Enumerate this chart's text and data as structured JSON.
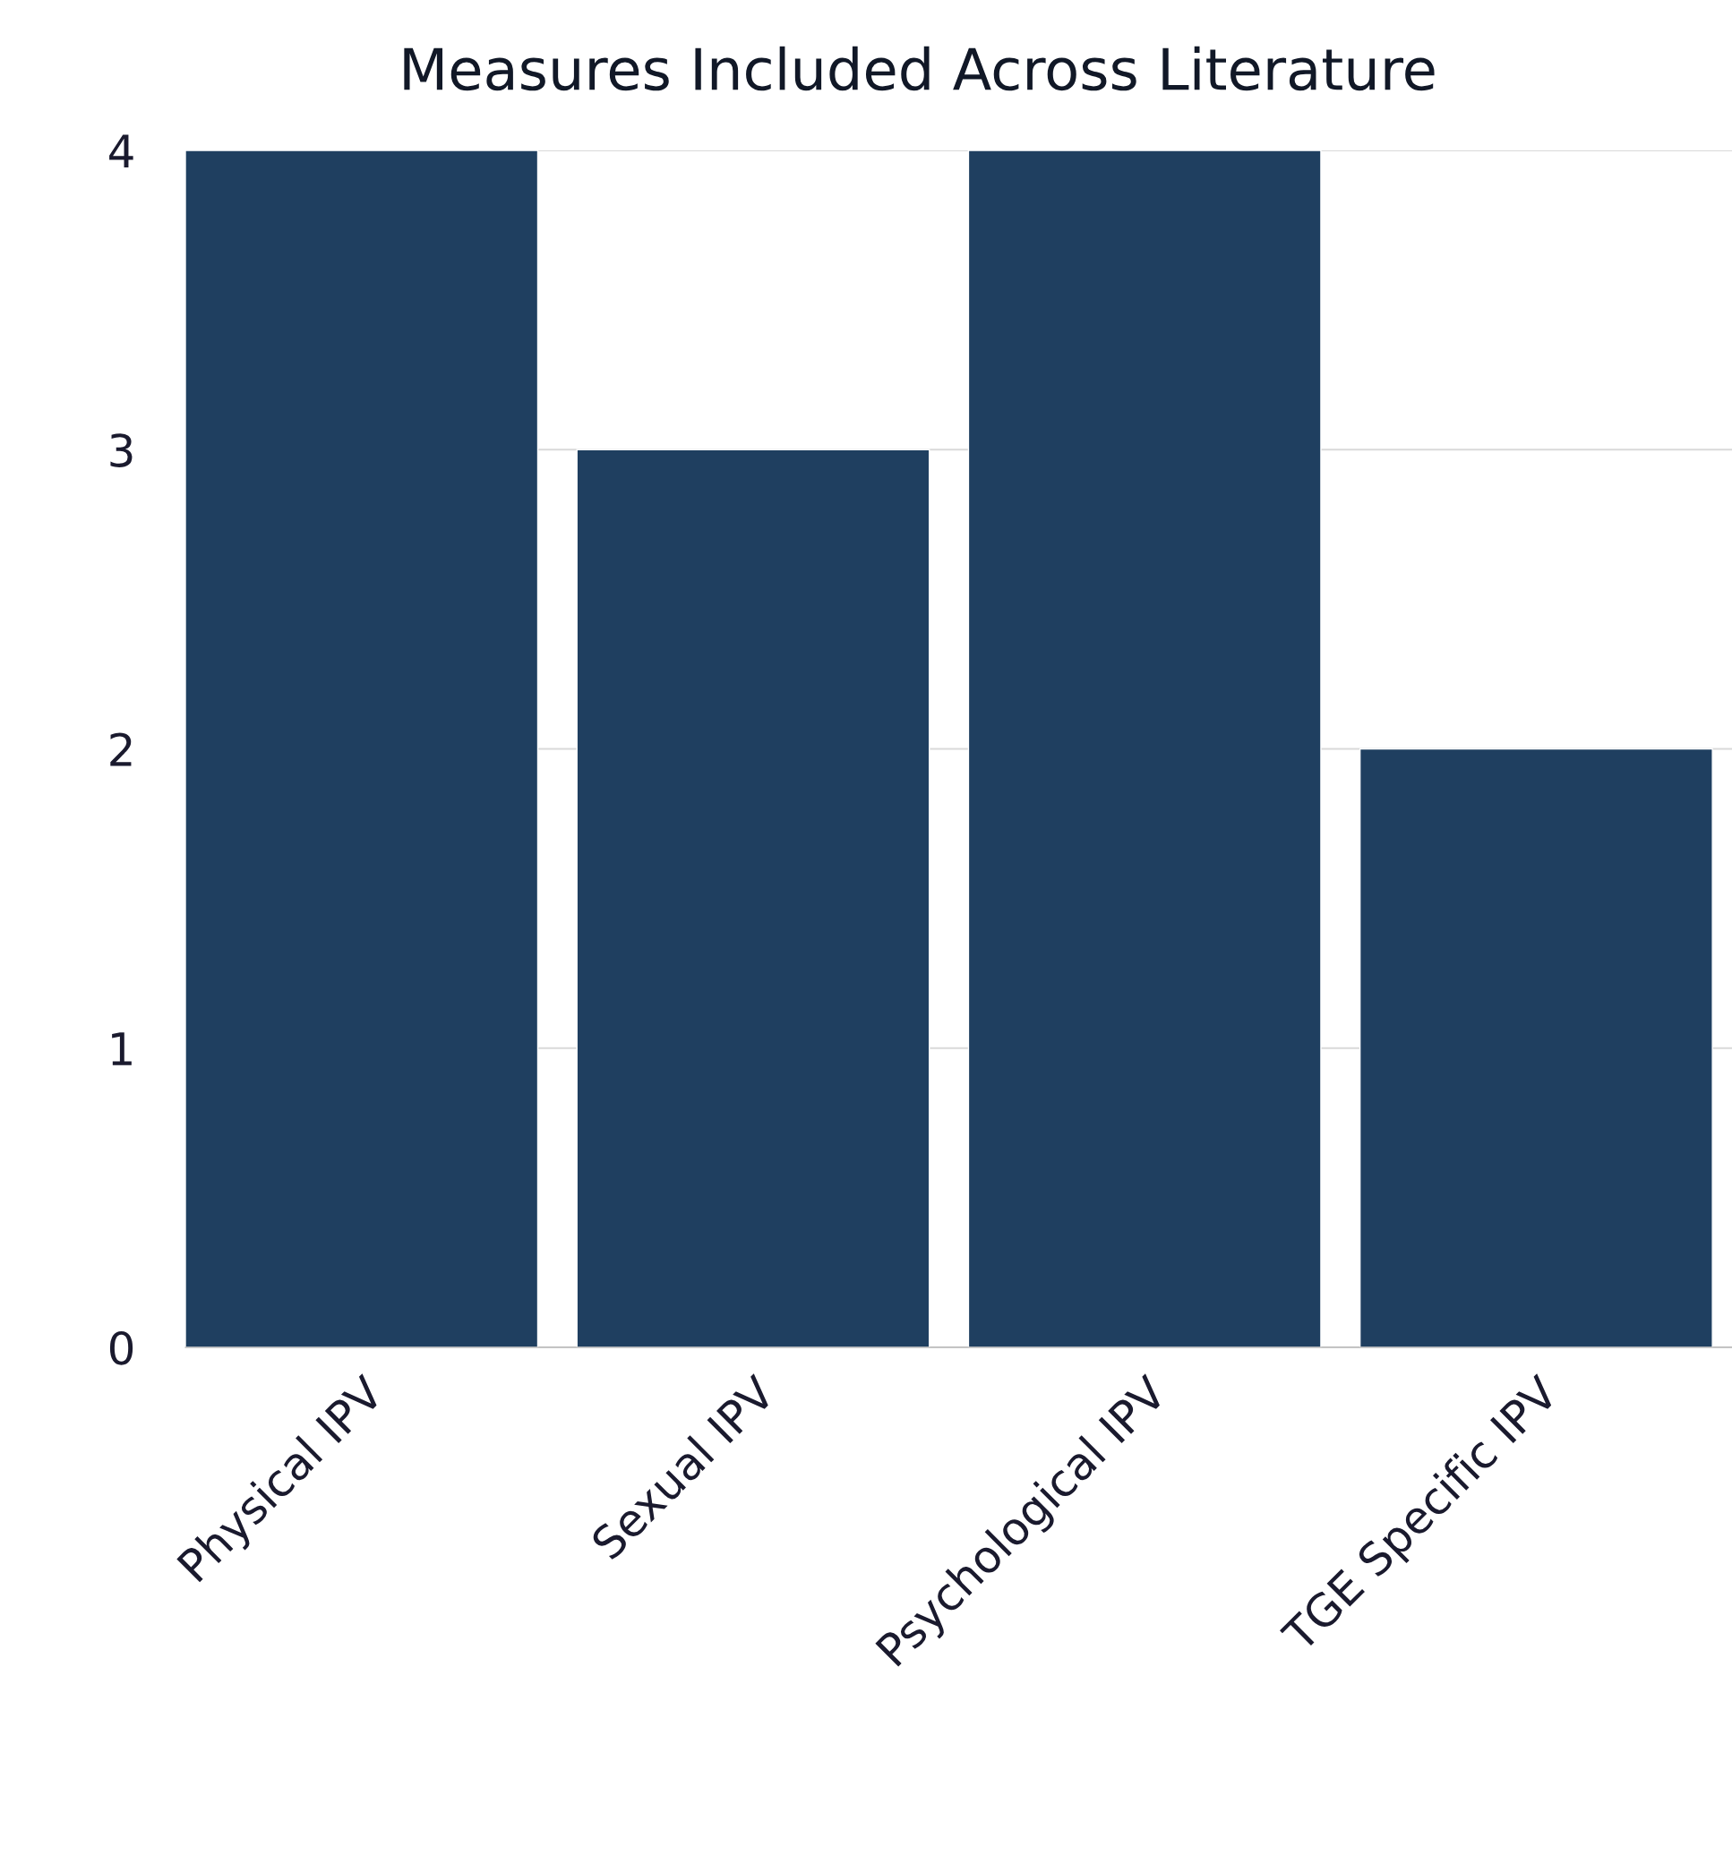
{
  "chart_data": {
    "type": "bar",
    "title": "Measures Included Across Literature",
    "categories": [
      "Physical IPV",
      "Sexual IPV",
      "Psychological IPV",
      "TGE Specific IPV"
    ],
    "values": [
      4,
      3,
      4,
      2
    ],
    "color": "#1f3f60",
    "ylim": [
      0,
      4
    ],
    "yticks": [
      0,
      1,
      2,
      3,
      4
    ],
    "grid": "y"
  }
}
